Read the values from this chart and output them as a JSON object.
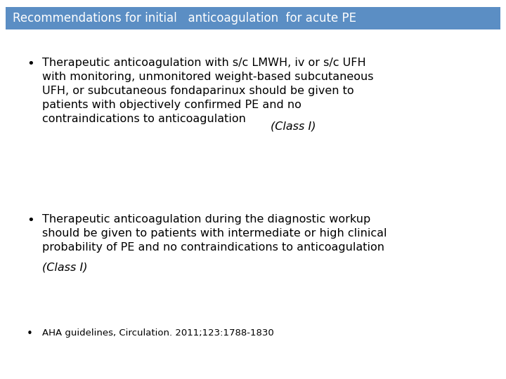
{
  "title": "Recommendations for initial   anticoagulation  for acute PE",
  "title_bg_color": "#5b8ec4",
  "title_text_color": "#ffffff",
  "background_color": "#ffffff",
  "bullet1_normal": "Therapeutic anticoagulation with s/c LMWH, iv or s/c UFH\nwith monitoring, unmonitored weight-based subcutaneous\nUFH, or subcutaneous fondaparinux should be given to\npatients with objectively confirmed PE and no\ncontraindications to anticoagulation ",
  "bullet1_italic": "(Class I)",
  "bullet2_normal": "Therapeutic anticoagulation during the diagnostic workup\nshould be given to patients with intermediate or high clinical\nprobability of PE and no contraindications to anticoagulation\n",
  "bullet2_italic": "(Class I)",
  "bullet3": "AHA guidelines, Circulation. 2011;123:1788-1830",
  "bullet_color": "#000000",
  "title_bg_color2": "#5b8ec4",
  "font_size_title": 12,
  "font_size_bullets": 11.5,
  "font_size_small": 9.5
}
